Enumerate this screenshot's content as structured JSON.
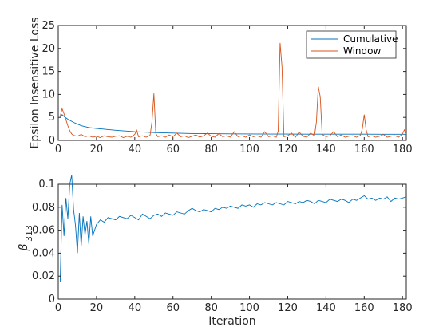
{
  "chart_data": [
    {
      "type": "line",
      "xlabel": "",
      "ylabel": "Epsilon Insensitive Loss",
      "xlim": [
        0,
        182
      ],
      "ylim": [
        0,
        25
      ],
      "xticks": [
        0,
        20,
        40,
        60,
        80,
        100,
        120,
        140,
        160,
        180
      ],
      "yticks": [
        0,
        5,
        10,
        15,
        20,
        25
      ],
      "legend_position": "top-right",
      "series": [
        {
          "name": "Cumulative",
          "color": "#0072BD",
          "x": [
            1,
            2,
            3,
            5,
            8,
            12,
            16,
            20,
            25,
            30,
            40,
            50,
            60,
            70,
            80,
            90,
            100,
            110,
            120,
            130,
            140,
            150,
            160,
            170,
            182
          ],
          "y": [
            5.0,
            5.6,
            5.2,
            4.6,
            3.9,
            3.2,
            2.8,
            2.6,
            2.4,
            2.2,
            1.9,
            1.7,
            1.6,
            1.5,
            1.45,
            1.42,
            1.4,
            1.38,
            1.37,
            1.36,
            1.36,
            1.35,
            1.35,
            1.34,
            1.34
          ]
        },
        {
          "name": "Window",
          "color": "#D95319",
          "x": [
            1,
            2,
            3,
            4,
            5,
            6,
            7,
            8,
            10,
            12,
            14,
            16,
            18,
            20,
            22,
            24,
            26,
            28,
            30,
            32,
            34,
            36,
            38,
            40,
            41,
            42,
            44,
            46,
            48,
            49,
            50,
            51,
            52,
            54,
            56,
            58,
            60,
            62,
            64,
            66,
            68,
            70,
            72,
            74,
            76,
            78,
            80,
            82,
            84,
            86,
            88,
            90,
            92,
            94,
            96,
            98,
            100,
            102,
            104,
            106,
            108,
            110,
            112,
            114,
            115,
            116,
            117,
            118,
            120,
            122,
            124,
            126,
            128,
            130,
            132,
            134,
            135,
            136,
            137,
            138,
            140,
            142,
            144,
            146,
            148,
            150,
            152,
            154,
            156,
            158,
            159,
            160,
            161,
            162,
            164,
            166,
            168,
            170,
            172,
            174,
            176,
            178,
            180,
            181,
            182
          ],
          "y": [
            5.2,
            6.9,
            5.8,
            4.5,
            3.2,
            2.1,
            1.4,
            1.1,
            0.9,
            1.3,
            0.8,
            1.0,
            0.7,
            0.9,
            0.6,
            1.0,
            0.8,
            0.7,
            0.9,
            1.0,
            0.6,
            0.9,
            0.7,
            1.3,
            2.2,
            0.8,
            1.0,
            0.7,
            1.1,
            4.0,
            10.2,
            1.5,
            0.8,
            1.0,
            0.7,
            1.2,
            0.8,
            1.6,
            0.8,
            1.0,
            0.6,
            0.9,
            1.2,
            0.7,
            1.0,
            1.6,
            0.9,
            0.7,
            1.5,
            0.8,
            1.0,
            0.7,
            1.9,
            0.8,
            1.0,
            0.7,
            1.2,
            0.8,
            1.0,
            0.7,
            1.9,
            0.8,
            1.0,
            0.7,
            2.0,
            21.2,
            16.0,
            0.8,
            1.0,
            1.6,
            0.7,
            1.8,
            0.9,
            0.7,
            1.6,
            1.0,
            4.0,
            11.7,
            9.5,
            1.3,
            0.8,
            1.0,
            1.9,
            0.8,
            1.2,
            0.7,
            0.9,
            1.0,
            0.7,
            1.1,
            2.5,
            5.6,
            2.3,
            0.8,
            1.0,
            0.7,
            0.9,
            1.3,
            0.7,
            0.9,
            1.0,
            0.7,
            1.4,
            2.3,
            1.5
          ]
        }
      ]
    },
    {
      "type": "line",
      "xlabel": "Iteration",
      "ylabel": "β",
      "ylabel_subscript": "313",
      "xlim": [
        0,
        182
      ],
      "ylim": [
        0,
        0.1
      ],
      "xticks": [
        0,
        20,
        40,
        60,
        80,
        100,
        120,
        140,
        160,
        180
      ],
      "yticks": [
        0,
        0.02,
        0.04,
        0.06,
        0.08,
        0.1
      ],
      "ytick_labels": [
        "0",
        "0.02",
        "0.04",
        "0.06",
        "0.08",
        "0.1"
      ],
      "series": [
        {
          "color": "#0072BD",
          "x": [
            1,
            2,
            3,
            4,
            5,
            6,
            7,
            8,
            9,
            10,
            11,
            12,
            13,
            14,
            15,
            16,
            17,
            18,
            19,
            20,
            22,
            24,
            26,
            28,
            30,
            32,
            34,
            36,
            38,
            40,
            42,
            44,
            46,
            48,
            50,
            52,
            54,
            56,
            58,
            60,
            62,
            64,
            66,
            68,
            70,
            72,
            74,
            76,
            78,
            80,
            82,
            84,
            86,
            88,
            90,
            92,
            94,
            96,
            98,
            100,
            102,
            104,
            106,
            108,
            110,
            112,
            114,
            116,
            118,
            120,
            122,
            124,
            126,
            128,
            130,
            132,
            134,
            136,
            138,
            140,
            142,
            144,
            146,
            148,
            150,
            152,
            154,
            156,
            158,
            160,
            162,
            164,
            166,
            168,
            170,
            172,
            174,
            176,
            178,
            180,
            182
          ],
          "y": [
            0.015,
            0.082,
            0.055,
            0.088,
            0.07,
            0.1,
            0.108,
            0.078,
            0.064,
            0.04,
            0.075,
            0.046,
            0.072,
            0.056,
            0.068,
            0.048,
            0.072,
            0.055,
            0.06,
            0.065,
            0.069,
            0.067,
            0.071,
            0.07,
            0.069,
            0.072,
            0.071,
            0.07,
            0.073,
            0.071,
            0.069,
            0.074,
            0.072,
            0.07,
            0.073,
            0.074,
            0.072,
            0.075,
            0.074,
            0.073,
            0.076,
            0.075,
            0.074,
            0.077,
            0.079,
            0.077,
            0.076,
            0.078,
            0.077,
            0.076,
            0.079,
            0.078,
            0.08,
            0.079,
            0.081,
            0.08,
            0.079,
            0.082,
            0.081,
            0.082,
            0.08,
            0.083,
            0.082,
            0.084,
            0.083,
            0.082,
            0.084,
            0.083,
            0.082,
            0.085,
            0.084,
            0.083,
            0.085,
            0.084,
            0.086,
            0.085,
            0.083,
            0.086,
            0.085,
            0.084,
            0.087,
            0.086,
            0.085,
            0.087,
            0.086,
            0.084,
            0.087,
            0.086,
            0.088,
            0.09,
            0.087,
            0.088,
            0.086,
            0.088,
            0.087,
            0.089,
            0.085,
            0.088,
            0.087,
            0.088,
            0.089
          ]
        }
      ]
    }
  ]
}
